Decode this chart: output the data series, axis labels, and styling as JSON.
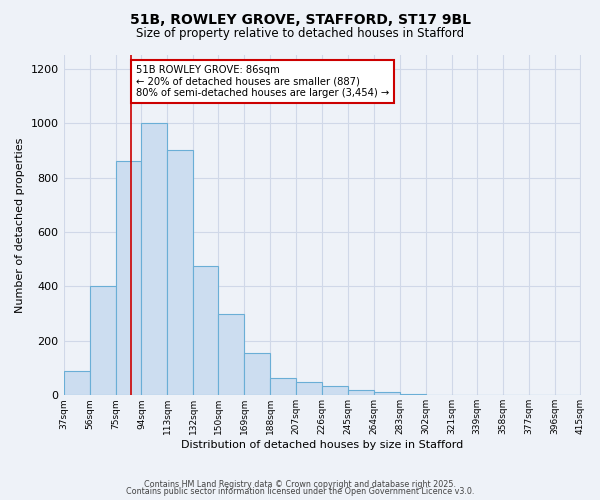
{
  "title": "51B, ROWLEY GROVE, STAFFORD, ST17 9BL",
  "subtitle": "Size of property relative to detached houses in Stafford",
  "xlabel": "Distribution of detached houses by size in Stafford",
  "ylabel": "Number of detached properties",
  "bin_labels": [
    "37sqm",
    "56sqm",
    "75sqm",
    "94sqm",
    "113sqm",
    "132sqm",
    "150sqm",
    "169sqm",
    "188sqm",
    "207sqm",
    "226sqm",
    "245sqm",
    "264sqm",
    "283sqm",
    "302sqm",
    "321sqm",
    "339sqm",
    "358sqm",
    "377sqm",
    "396sqm",
    "415sqm"
  ],
  "bin_edges": [
    37,
    56,
    75,
    94,
    113,
    132,
    150,
    169,
    188,
    207,
    226,
    245,
    264,
    283,
    302,
    321,
    339,
    358,
    377,
    396,
    415
  ],
  "bar_heights": [
    90,
    400,
    860,
    1000,
    900,
    475,
    300,
    155,
    65,
    50,
    35,
    20,
    12,
    3,
    2,
    2,
    1,
    0,
    0,
    0
  ],
  "bar_color": "#ccddf0",
  "bar_edge_color": "#6aaed6",
  "background_color": "#eef2f8",
  "grid_color": "#dde5f0",
  "property_line_x": 86,
  "property_line_color": "#cc0000",
  "annotation_text": "51B ROWLEY GROVE: 86sqm\n← 20% of detached houses are smaller (887)\n80% of semi-detached houses are larger (3,454) →",
  "annotation_box_color": "#ffffff",
  "annotation_box_edge_color": "#cc0000",
  "ylim": [
    0,
    1250
  ],
  "yticks": [
    0,
    200,
    400,
    600,
    800,
    1000,
    1200
  ],
  "footer1": "Contains HM Land Registry data © Crown copyright and database right 2025.",
  "footer2": "Contains public sector information licensed under the Open Government Licence v3.0."
}
